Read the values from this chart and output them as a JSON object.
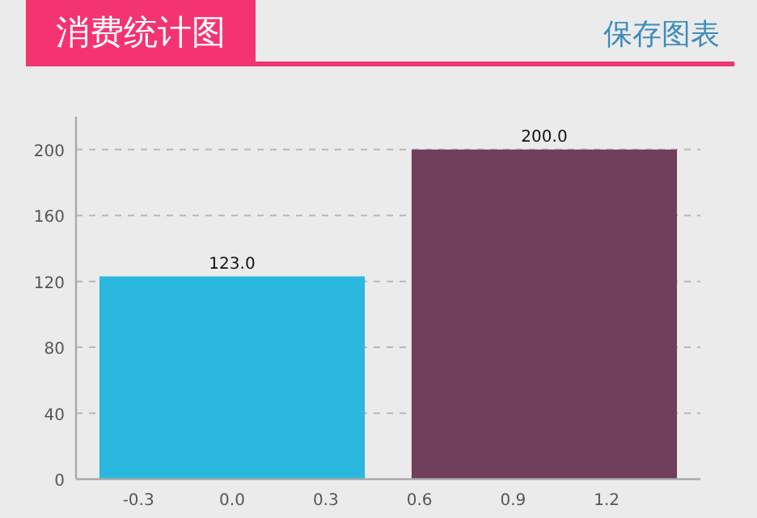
{
  "chart_data": {
    "type": "bar",
    "title": "消费统计图",
    "annotations": [
      "保存图表"
    ],
    "x": [
      0,
      1
    ],
    "values": [
      123,
      200
    ],
    "colors": [
      "#2bb8df",
      "#6f3f5b"
    ],
    "value_labels": [
      "123.0",
      "200.0"
    ],
    "xlim": [
      -0.5,
      1.5
    ],
    "xticks": [
      -0.3,
      {
        "value": 0,
        "label": "0.0"
      },
      0.3,
      0.6,
      0.9,
      1.2
    ],
    "ylim": [
      0,
      220
    ],
    "yticks": [
      0,
      40,
      80,
      120,
      160,
      200
    ],
    "grid": "y"
  }
}
